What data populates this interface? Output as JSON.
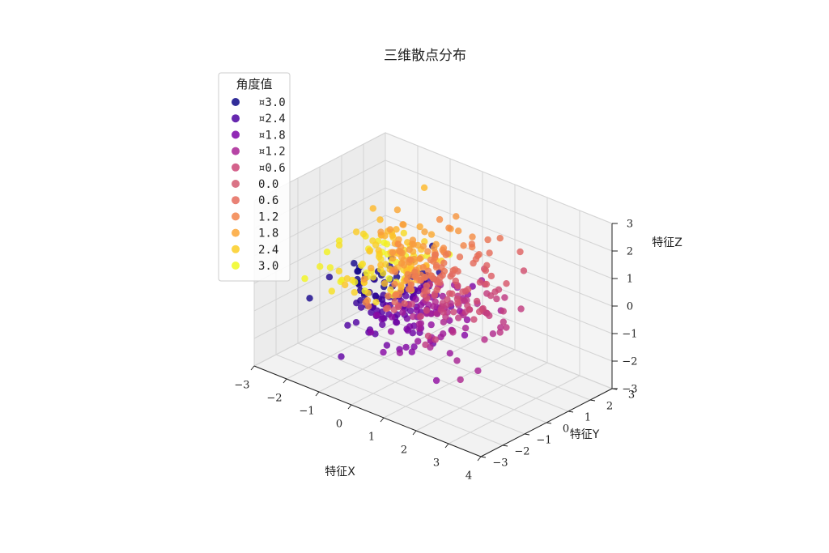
{
  "chart_data": {
    "type": "scatter",
    "title": "三维散点分布",
    "xlabel": "特征X",
    "ylabel": "特征Y",
    "zlabel": "特征Z",
    "xlim": [
      -3,
      4
    ],
    "ylim": [
      -3,
      3
    ],
    "zlim": [
      -3,
      3
    ],
    "x_ticks": [
      "−3",
      "−2",
      "−1",
      "0",
      "1",
      "2",
      "3",
      "4"
    ],
    "y_ticks": [
      "−3",
      "−2",
      "−1",
      "0",
      "1",
      "2",
      "3"
    ],
    "z_ticks": [
      "−3",
      "−2",
      "−1",
      "0",
      "1",
      "2",
      "3"
    ],
    "grid": true,
    "colormap": "plasma",
    "color_by": "angle",
    "legend": {
      "title": "角度值",
      "placement": "upper-left",
      "entries": [
        {
          "label": "¤3.0",
          "color": "#0d0887"
        },
        {
          "label": "¤2.4",
          "color": "#4c02a1"
        },
        {
          "label": "¤1.8",
          "color": "#7e03a8"
        },
        {
          "label": "¤1.2",
          "color": "#a92395"
        },
        {
          "label": "¤0.6",
          "color": "#cc4778"
        },
        {
          "label": "0.0",
          "color": "#d45a71"
        },
        {
          "label": "0.6",
          "color": "#e56b5d"
        },
        {
          "label": "1.2",
          "color": "#f2844b"
        },
        {
          "label": "1.8",
          "color": "#fca636"
        },
        {
          "label": "2.4",
          "color": "#fcce25"
        },
        {
          "label": "3.0",
          "color": "#f0f921"
        }
      ]
    },
    "n_points": 500,
    "distribution": "standard normal in x, y, z; color by angle atan2(z, x)",
    "outliers": [
      {
        "x": 1.5,
        "y": 2.5,
        "z": 1.0
      }
    ]
  }
}
